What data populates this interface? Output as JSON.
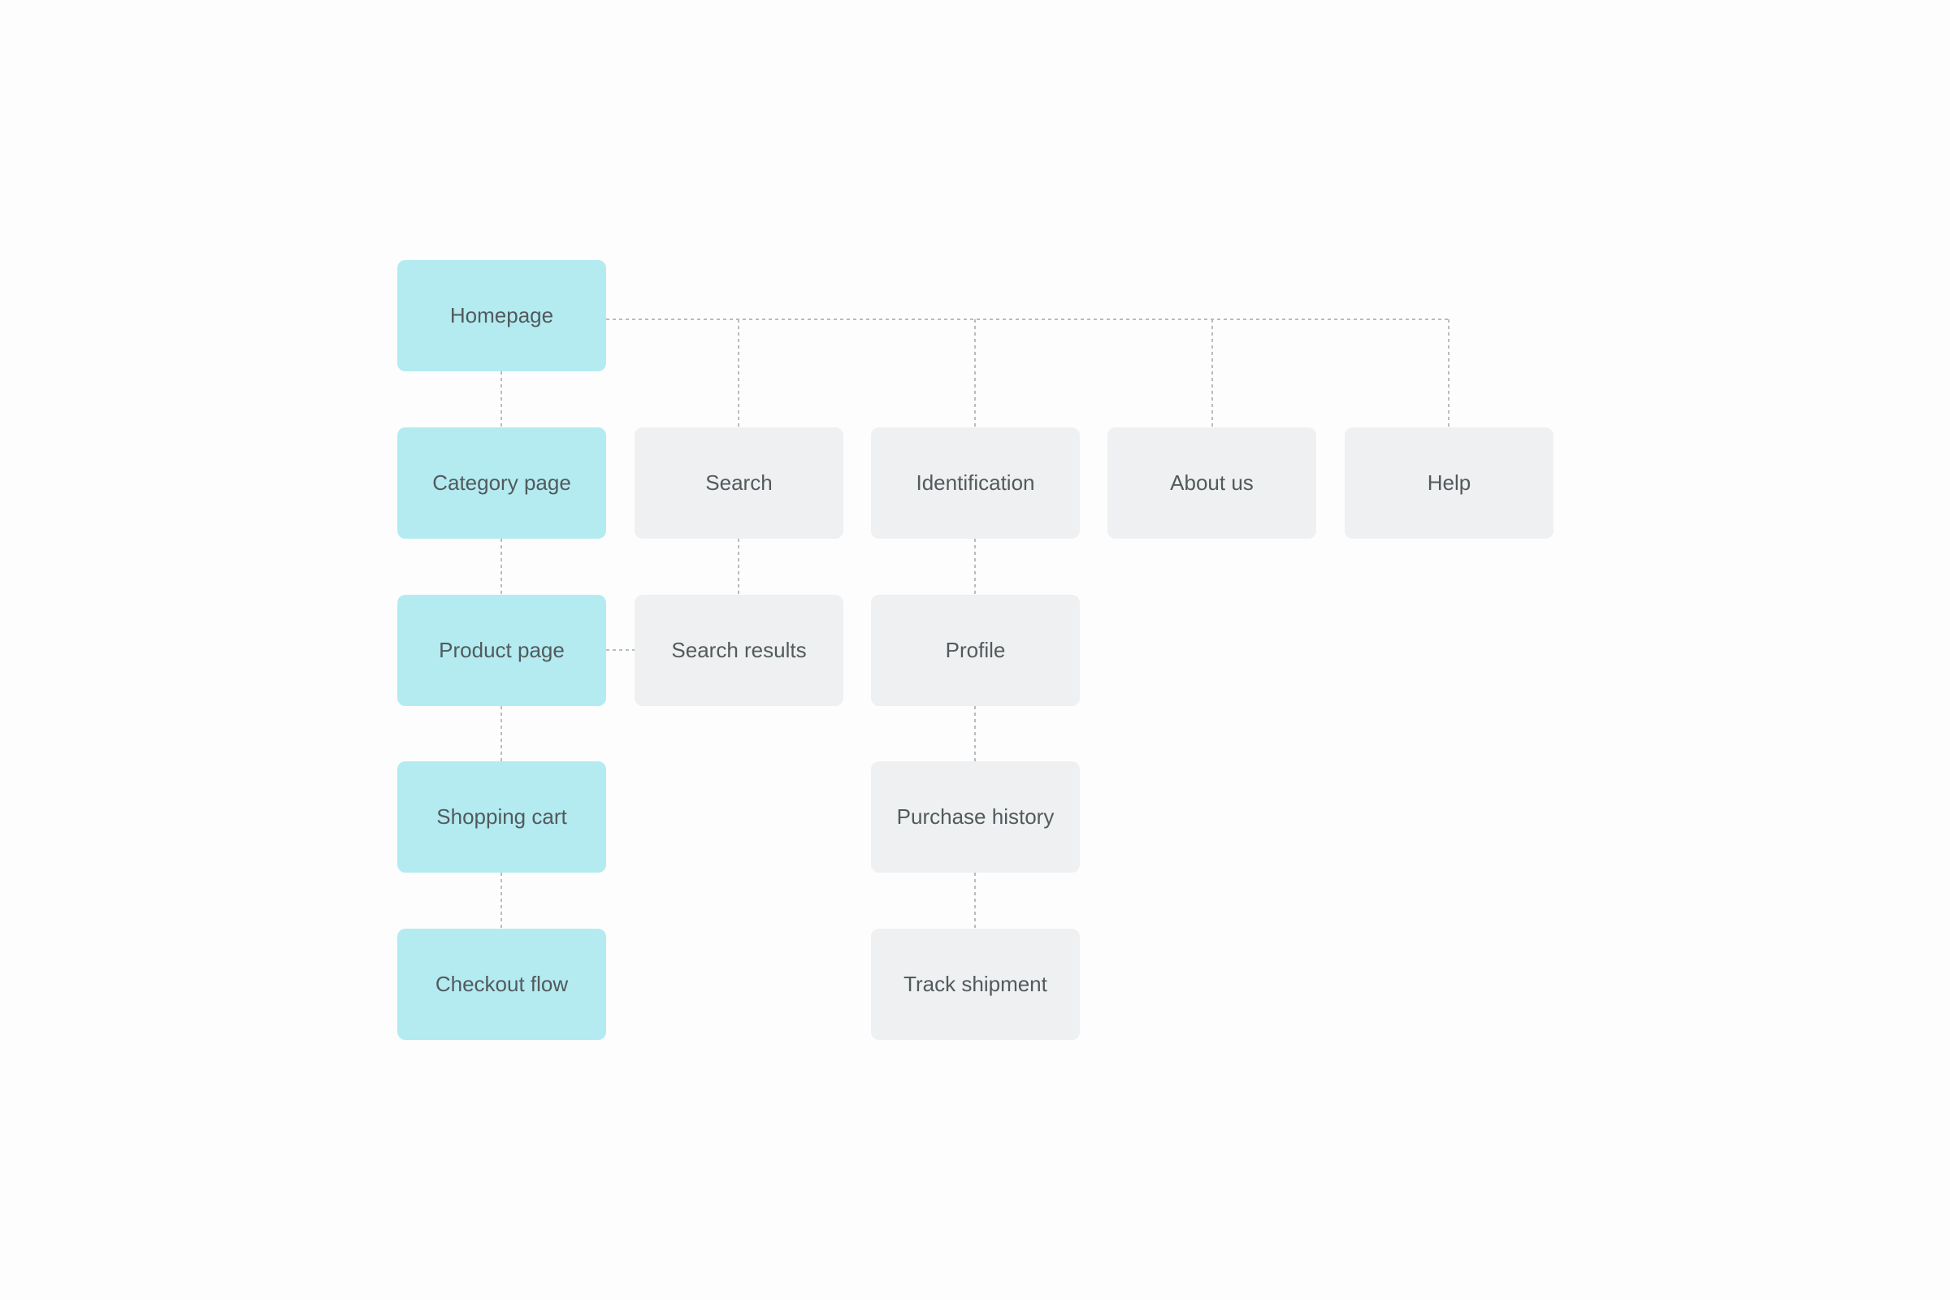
{
  "colors": {
    "background": "#fdfdfd",
    "primary_node": "#b3ebf1",
    "secondary_node": "#eef0f1",
    "text": "#525a5c",
    "connector": "#b8bdbf"
  },
  "nodes": {
    "homepage": "Homepage",
    "category_page": "Category page",
    "product_page": "Product page",
    "shopping_cart": "Shopping cart",
    "checkout_flow": "Checkout flow",
    "search": "Search",
    "search_results": "Search results",
    "identification": "Identification",
    "profile": "Profile",
    "purchase_history": "Purchase history",
    "track_shipment": "Track shipment",
    "about_us": "About us",
    "help": "Help"
  }
}
